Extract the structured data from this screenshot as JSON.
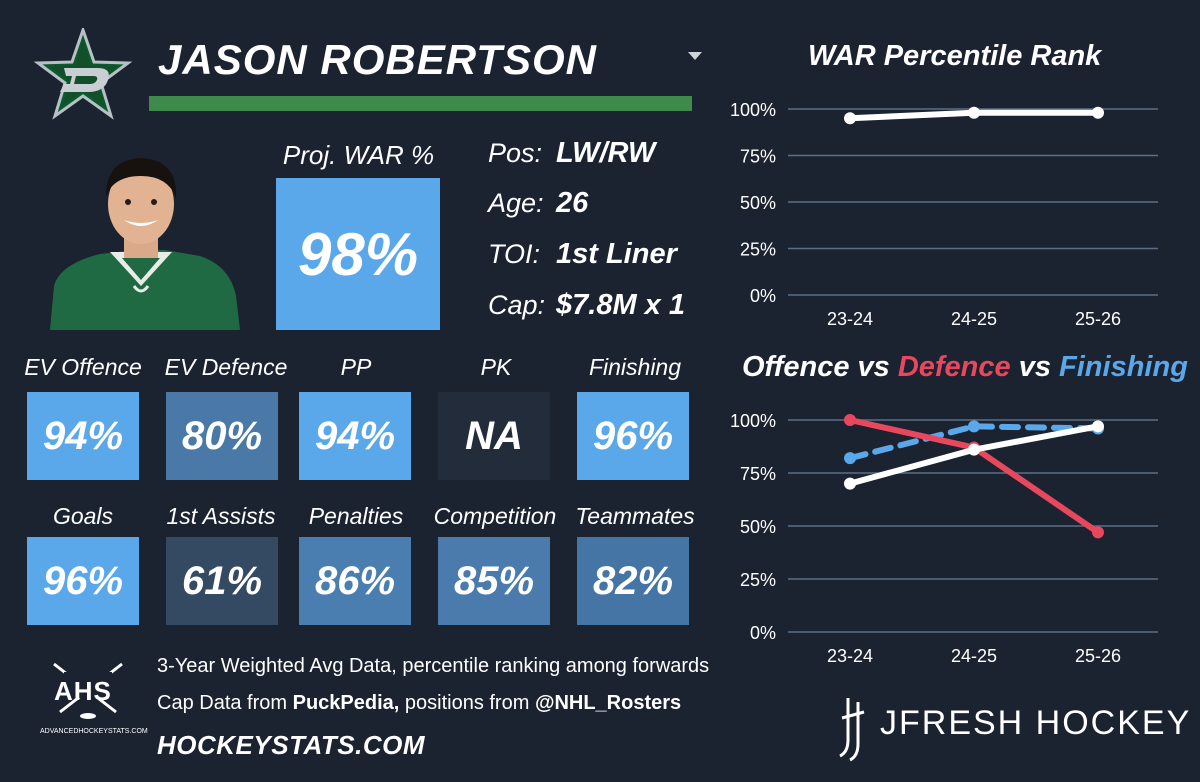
{
  "player": {
    "name": "JASON ROBERTSON",
    "proj_war_label": "Proj. WAR %",
    "proj_war_value": "98%",
    "info": [
      {
        "label": "Pos:",
        "value": "LW/RW"
      },
      {
        "label": "Age:",
        "value": "26"
      },
      {
        "label": "TOI:",
        "value": "1st Liner"
      },
      {
        "label": "Cap:",
        "value": "$7.8M x 1"
      }
    ]
  },
  "colors": {
    "background": "#1b2230",
    "war_bar": "#3e8a4a",
    "proj_box": "#5aa8ea",
    "offence": "#ffffff",
    "defence": "#e8485e",
    "finishing": "#5aa8ea",
    "gridline": "#5b7088"
  },
  "tiles": [
    {
      "label": "EV Offence",
      "value": "94%",
      "color": "#5aa8ea"
    },
    {
      "label": "EV Defence",
      "value": "80%",
      "color": "#4a79a8"
    },
    {
      "label": "PP",
      "value": "94%",
      "color": "#5aa8ea"
    },
    {
      "label": "PK",
      "value": "NA",
      "color": "#222c3a"
    },
    {
      "label": "Finishing",
      "value": "96%",
      "color": "#5aa8ea"
    },
    {
      "label": "Goals",
      "value": "96%",
      "color": "#5aa8ea"
    },
    {
      "label": "1st Assists",
      "value": "61%",
      "color": "#344a63"
    },
    {
      "label": "Penalties",
      "value": "86%",
      "color": "#4b7eb0"
    },
    {
      "label": "Competition",
      "value": "85%",
      "color": "#4a7bac"
    },
    {
      "label": "Teammates",
      "value": "82%",
      "color": "#4575a4"
    }
  ],
  "footer": {
    "line1": "3-Year Weighted Avg Data, percentile ranking among forwards",
    "line2_prefix": "Cap Data from ",
    "line2_source": "PuckPedia,",
    "line2_mid": " positions from ",
    "line2_handle": "@NHL_Rosters",
    "site": "HOCKEYSTATS.COM",
    "ahs_logo_text": "AHS",
    "ahs_small_text": "ADVANCEDHOCKEYSTATS.COM",
    "brand": "JFRESH HOCKEY"
  },
  "chart_data": [
    {
      "type": "line",
      "title": "WAR Percentile Rank",
      "categories": [
        "23-24",
        "24-25",
        "25-26"
      ],
      "yticks": [
        "100%",
        "75%",
        "50%",
        "25%",
        "0%"
      ],
      "ylim": [
        0,
        100
      ],
      "series": [
        {
          "values": [
            95,
            98,
            98
          ],
          "color": "#ffffff",
          "dashed": false
        }
      ]
    },
    {
      "type": "line",
      "title_parts": [
        {
          "text": "Offence",
          "color": "#ffffff"
        },
        {
          "text": " vs ",
          "color": "#ffffff"
        },
        {
          "text": "Defence",
          "color": "#e8485e"
        },
        {
          "text": " vs ",
          "color": "#ffffff"
        },
        {
          "text": "Finishing",
          "color": "#5aa8ea"
        }
      ],
      "categories": [
        "23-24",
        "24-25",
        "25-26"
      ],
      "yticks": [
        "100%",
        "75%",
        "50%",
        "25%",
        "0%"
      ],
      "ylim": [
        0,
        100
      ],
      "series": [
        {
          "name": "Finishing",
          "values": [
            82,
            97,
            96
          ],
          "color": "#5aa8ea",
          "dashed": true
        },
        {
          "name": "Defence",
          "values": [
            100,
            87,
            47
          ],
          "color": "#e8485e",
          "dashed": false
        },
        {
          "name": "Offence",
          "values": [
            70,
            86,
            97
          ],
          "color": "#ffffff",
          "dashed": false
        }
      ]
    }
  ]
}
